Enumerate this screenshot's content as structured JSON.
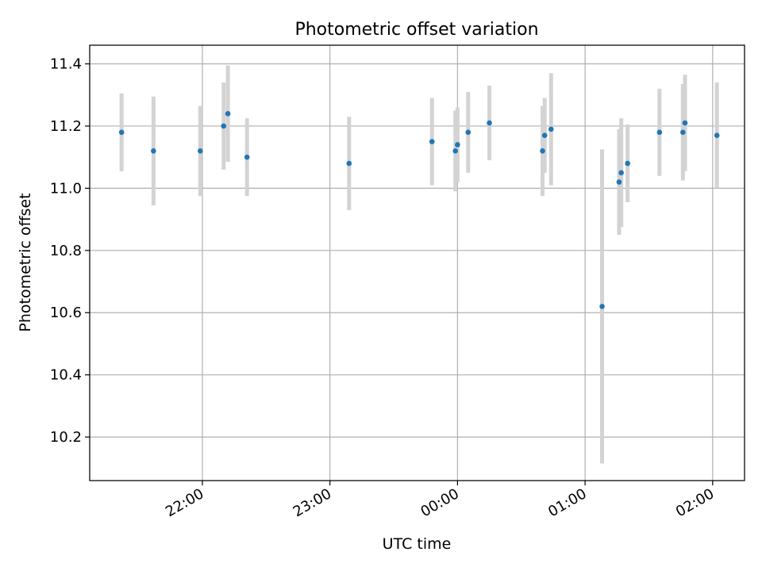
{
  "chart_data": {
    "type": "scatter",
    "title": "Photometric offset variation",
    "xlabel": "UTC time",
    "ylabel": "Photometric offset",
    "xlim": [
      "21:07",
      "02:15"
    ],
    "ylim": [
      10.06,
      11.46
    ],
    "x_ticks": [
      "22:00",
      "23:00",
      "00:00",
      "01:00",
      "02:00"
    ],
    "y_ticks": [
      10.2,
      10.4,
      10.6,
      10.8,
      11.0,
      11.2,
      11.4
    ],
    "grid": true,
    "marker_color": "#1f77b4",
    "errorbar_color": "#d3d3d3",
    "points": [
      {
        "time": "21:22",
        "y": 11.18,
        "err": 0.125
      },
      {
        "time": "21:37",
        "y": 11.12,
        "err": 0.175
      },
      {
        "time": "21:59",
        "y": 11.12,
        "err": 0.145
      },
      {
        "time": "22:10",
        "y": 11.2,
        "err": 0.14
      },
      {
        "time": "22:12",
        "y": 11.24,
        "err": 0.155
      },
      {
        "time": "22:21",
        "y": 11.1,
        "err": 0.125
      },
      {
        "time": "23:09",
        "y": 11.08,
        "err": 0.15
      },
      {
        "time": "23:48",
        "y": 11.15,
        "err": 0.14
      },
      {
        "time": "23:59",
        "y": 11.12,
        "err": 0.13
      },
      {
        "time": "00:00",
        "y": 11.14,
        "err": 0.12
      },
      {
        "time": "00:05",
        "y": 11.18,
        "err": 0.13
      },
      {
        "time": "00:15",
        "y": 11.21,
        "err": 0.12
      },
      {
        "time": "00:40",
        "y": 11.12,
        "err": 0.145
      },
      {
        "time": "00:41",
        "y": 11.17,
        "err": 0.12
      },
      {
        "time": "00:44",
        "y": 11.19,
        "err": 0.18
      },
      {
        "time": "01:08",
        "y": 10.62,
        "err": 0.505
      },
      {
        "time": "01:16",
        "y": 11.02,
        "err": 0.17
      },
      {
        "time": "01:17",
        "y": 11.05,
        "err": 0.175
      },
      {
        "time": "01:20",
        "y": 11.08,
        "err": 0.125
      },
      {
        "time": "01:35",
        "y": 11.18,
        "err": 0.14
      },
      {
        "time": "01:46",
        "y": 11.18,
        "err": 0.155
      },
      {
        "time": "01:47",
        "y": 11.21,
        "err": 0.155
      },
      {
        "time": "02:02",
        "y": 11.17,
        "err": 0.17
      }
    ]
  }
}
